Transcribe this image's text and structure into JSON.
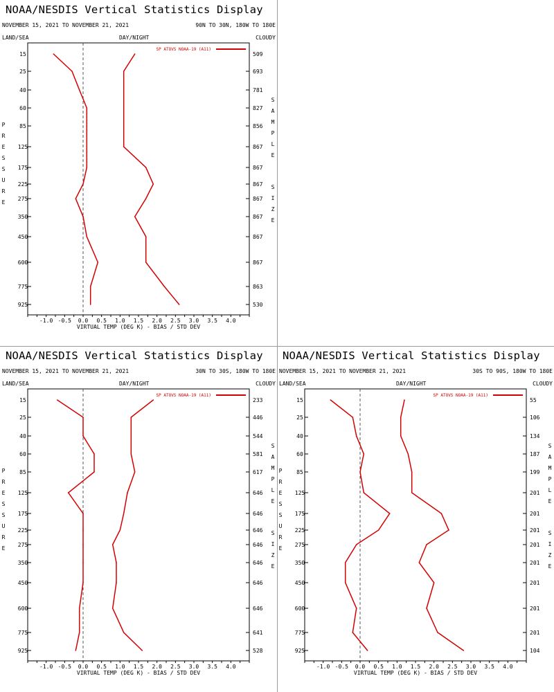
{
  "header": {
    "title": "NOAA/NESDIS Vertical Statistics Display",
    "dates": "NOVEMBER 15, 2021 TO NOVEMBER 21, 2021",
    "land_sea": "LAND/SEA",
    "day_night": "DAY/NIGHT",
    "cloudy": "CLOUDY",
    "pressure_label": "PRESSURE",
    "sample_label": "SAMPLE",
    "size_label": "SIZE",
    "xlabel": "VIRTUAL TEMP (DEG K) - BIAS / STD DEV",
    "legend": "SP ATOVS NOAA-19 (A11)"
  },
  "colors": {
    "series": "#d40000",
    "zero_line": "#555555",
    "axis": "#000000"
  },
  "chart_data": [
    {
      "type": "line",
      "region": "90N TO 30N, 180W TO 180E",
      "xlim": [
        -1.5,
        4.5
      ],
      "xticks": [
        "-1.0",
        "-0.5",
        "0.0",
        "0.5",
        "1.0",
        "1.5",
        "2.0",
        "2.5",
        "3.0",
        "3.5",
        "4.0"
      ],
      "pressure": [
        "15",
        "25",
        "40",
        "60",
        "85",
        "125",
        "175",
        "225",
        "275",
        "350",
        "450",
        "600",
        "775",
        "925"
      ],
      "sample_size": [
        "509",
        "693",
        "781",
        "827",
        "856",
        "867",
        "867",
        "867",
        "867",
        "867",
        "867",
        "867",
        "863",
        "530"
      ],
      "series": [
        {
          "name": "BIAS",
          "values": [
            -0.8,
            -0.3,
            -0.1,
            0.1,
            0.1,
            0.1,
            0.1,
            0.0,
            -0.2,
            0.0,
            0.1,
            0.4,
            0.2,
            0.2
          ]
        },
        {
          "name": "STD DEV",
          "values": [
            1.4,
            1.1,
            1.1,
            1.1,
            1.1,
            1.1,
            1.7,
            1.9,
            1.7,
            1.4,
            1.7,
            1.7,
            2.2,
            2.6
          ]
        }
      ]
    },
    {
      "type": "line",
      "region": "30N TO 30S, 180W TO 180E",
      "xlim": [
        -1.5,
        4.5
      ],
      "xticks": [
        "-1.0",
        "-0.5",
        "0.0",
        "0.5",
        "1.0",
        "1.5",
        "2.0",
        "2.5",
        "3.0",
        "3.5",
        "4.0"
      ],
      "pressure": [
        "15",
        "25",
        "40",
        "60",
        "85",
        "125",
        "175",
        "225",
        "275",
        "350",
        "450",
        "600",
        "775",
        "925"
      ],
      "sample_size": [
        "233",
        "446",
        "544",
        "581",
        "617",
        "646",
        "646",
        "646",
        "646",
        "646",
        "646",
        "646",
        "641",
        "528"
      ],
      "series": [
        {
          "name": "BIAS",
          "values": [
            -0.7,
            0.0,
            0.0,
            0.3,
            0.3,
            -0.4,
            0.0,
            0.0,
            0.0,
            0.0,
            0.0,
            -0.1,
            -0.1,
            -0.2
          ]
        },
        {
          "name": "STD DEV",
          "values": [
            1.9,
            1.3,
            1.3,
            1.3,
            1.4,
            1.2,
            1.1,
            1.0,
            0.8,
            0.9,
            0.9,
            0.8,
            1.1,
            1.6
          ]
        }
      ]
    },
    {
      "type": "line",
      "region": "30S TO 90S, 180W TO 180E",
      "xlim": [
        -1.5,
        4.5
      ],
      "xticks": [
        "-1.0",
        "-0.5",
        "0.0",
        "0.5",
        "1.0",
        "1.5",
        "2.0",
        "2.5",
        "3.0",
        "3.5",
        "4.0"
      ],
      "pressure": [
        "15",
        "25",
        "40",
        "60",
        "85",
        "125",
        "175",
        "225",
        "275",
        "350",
        "450",
        "600",
        "775",
        "925"
      ],
      "sample_size": [
        "55",
        "106",
        "134",
        "187",
        "199",
        "201",
        "201",
        "201",
        "201",
        "201",
        "201",
        "201",
        "201",
        "104"
      ],
      "series": [
        {
          "name": "BIAS",
          "values": [
            -0.8,
            -0.2,
            -0.1,
            0.1,
            0.0,
            0.1,
            0.8,
            0.5,
            -0.1,
            -0.4,
            -0.4,
            -0.1,
            -0.2,
            0.2
          ]
        },
        {
          "name": "STD DEV",
          "values": [
            1.2,
            1.1,
            1.1,
            1.3,
            1.4,
            1.4,
            2.2,
            2.4,
            1.8,
            1.6,
            2.0,
            1.8,
            2.1,
            2.8
          ]
        }
      ]
    }
  ]
}
